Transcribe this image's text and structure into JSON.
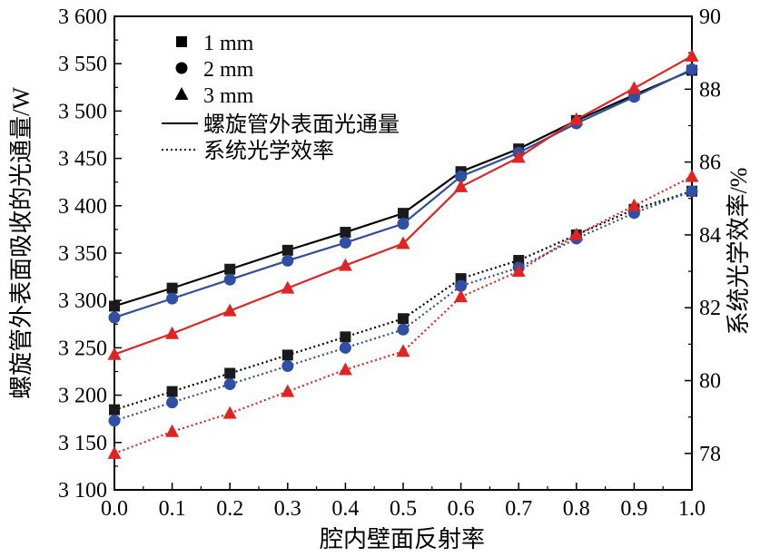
{
  "chart_data": {
    "type": "line",
    "title": "",
    "xlabel": "腔内壁面反射率",
    "ylabel_left": "螺旋管外表面吸收的光通量/W",
    "ylabel_right": "系统光学效率/%",
    "x": [
      0.0,
      0.1,
      0.2,
      0.3,
      0.4,
      0.5,
      0.6,
      0.7,
      0.8,
      0.9,
      1.0
    ],
    "x_tick_labels": [
      "0.0",
      "0.1",
      "0.2",
      "0.3",
      "0.4",
      "0.5",
      "0.6",
      "0.7",
      "0.8",
      "0.9",
      "1.0"
    ],
    "xlim": [
      0.0,
      1.0
    ],
    "ylim_left": [
      3100,
      3600
    ],
    "y_left_tick_values": [
      3100,
      3150,
      3200,
      3250,
      3300,
      3350,
      3400,
      3450,
      3500,
      3550,
      3600
    ],
    "y_left_tick_labels": [
      "3 100",
      "3 150",
      "3 200",
      "3 250",
      "3 300",
      "3 350",
      "3 400",
      "3 450",
      "3 500",
      "3 550",
      "3 600"
    ],
    "ylim_right": [
      77,
      90
    ],
    "y_right_tick_values": [
      78,
      80,
      82,
      84,
      86,
      88,
      90
    ],
    "y_right_tick_labels": [
      "78",
      "80",
      "82",
      "84",
      "86",
      "88",
      "90"
    ],
    "grid": false,
    "legend_position": "top-left",
    "legend": {
      "markers": [
        {
          "label": "1 mm",
          "marker": "square"
        },
        {
          "label": "2 mm",
          "marker": "circle"
        },
        {
          "label": "3 mm",
          "marker": "triangle"
        }
      ],
      "lines": [
        {
          "label": "螺旋管外表面光通量",
          "style": "solid"
        },
        {
          "label": "系统光学效率",
          "style": "dotted"
        }
      ]
    },
    "series": [
      {
        "diameter": "1 mm",
        "metric": "flux",
        "axis": "left",
        "marker": "square",
        "color": "#000000",
        "marker_color": "#1a1a1a",
        "style": "solid",
        "values": [
          3294,
          3313,
          3333,
          3353,
          3372,
          3392,
          3436,
          3460,
          3490,
          3517,
          3543
        ]
      },
      {
        "diameter": "2 mm",
        "metric": "flux",
        "axis": "left",
        "marker": "circle",
        "color": "#2f4f9e",
        "marker_color": "#2e4fa3",
        "style": "solid",
        "values": [
          3282,
          3302,
          3322,
          3342,
          3361,
          3381,
          3431,
          3456,
          3487,
          3515,
          3544
        ]
      },
      {
        "diameter": "3 mm",
        "metric": "flux",
        "axis": "left",
        "marker": "triangle",
        "color": "#e02424",
        "marker_color": "#e02424",
        "style": "solid",
        "values": [
          3243,
          3265,
          3289,
          3313,
          3337,
          3360,
          3420,
          3451,
          3491,
          3524,
          3558
        ]
      },
      {
        "diameter": "1 mm",
        "metric": "efficiency",
        "axis": "right",
        "marker": "square",
        "color": "#000000",
        "marker_color": "#1a1a1a",
        "style": "dotted",
        "values": [
          79.2,
          79.7,
          80.2,
          80.7,
          81.2,
          81.7,
          82.8,
          83.3,
          84.0,
          84.7,
          85.2
        ]
      },
      {
        "diameter": "2 mm",
        "metric": "efficiency",
        "axis": "right",
        "marker": "circle",
        "color": "#2f4f9e",
        "marker_color": "#2e4fa3",
        "style": "dotted",
        "values": [
          78.9,
          79.4,
          79.9,
          80.4,
          80.9,
          81.4,
          82.6,
          83.1,
          83.9,
          84.6,
          85.2
        ]
      },
      {
        "diameter": "3 mm",
        "metric": "efficiency",
        "axis": "right",
        "marker": "triangle",
        "color": "#e02424",
        "marker_color": "#e02424",
        "style": "dotted",
        "values": [
          78.0,
          78.6,
          79.1,
          79.7,
          80.3,
          80.8,
          82.3,
          83.0,
          84.0,
          84.8,
          85.6
        ]
      }
    ]
  }
}
